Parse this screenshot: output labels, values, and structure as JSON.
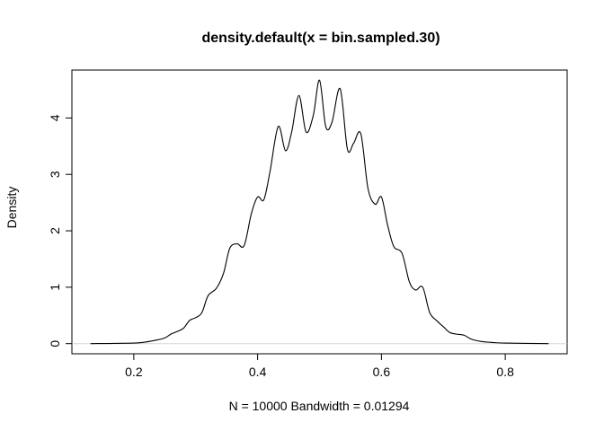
{
  "chart_data": {
    "type": "line",
    "title": "density.default(x = bin.sampled.30)",
    "xlabel": "N = 10000   Bandwidth = 0.01294",
    "ylabel": "Density",
    "xlim": [
      0.1,
      0.9
    ],
    "ylim": [
      -0.18,
      4.85
    ],
    "x_ticks": [
      0.2,
      0.4,
      0.6,
      0.8
    ],
    "x_tick_labels": [
      "0.2",
      "0.4",
      "0.6",
      "0.8"
    ],
    "y_ticks": [
      0,
      1,
      2,
      3,
      4
    ],
    "y_tick_labels": [
      "0",
      "1",
      "2",
      "3",
      "4"
    ],
    "grid": false,
    "baseline": 0,
    "series": [
      {
        "color": "#000000",
        "x": [
          0.13,
          0.2,
          0.22,
          0.235,
          0.25,
          0.26,
          0.2667,
          0.28,
          0.29,
          0.3,
          0.31,
          0.32,
          0.3333,
          0.345,
          0.355,
          0.3667,
          0.3783,
          0.39,
          0.4,
          0.41,
          0.42,
          0.4333,
          0.445,
          0.455,
          0.4667,
          0.4783,
          0.49,
          0.5,
          0.51,
          0.52,
          0.5333,
          0.545,
          0.555,
          0.5667,
          0.5783,
          0.59,
          0.6,
          0.61,
          0.62,
          0.6333,
          0.645,
          0.655,
          0.6667,
          0.678,
          0.69,
          0.7,
          0.71,
          0.72,
          0.7333,
          0.745,
          0.76,
          0.78,
          0.8,
          0.87
        ],
        "y": [
          0,
          0.01,
          0.03,
          0.06,
          0.1,
          0.17,
          0.2,
          0.27,
          0.41,
          0.46,
          0.55,
          0.85,
          0.98,
          1.25,
          1.69,
          1.77,
          1.74,
          2.31,
          2.6,
          2.55,
          3.05,
          3.85,
          3.42,
          3.75,
          4.4,
          3.75,
          4.05,
          4.67,
          3.85,
          3.92,
          4.52,
          3.45,
          3.55,
          3.72,
          2.75,
          2.47,
          2.6,
          2.1,
          1.72,
          1.6,
          1.1,
          0.95,
          1.0,
          0.55,
          0.4,
          0.3,
          0.2,
          0.17,
          0.15,
          0.08,
          0.04,
          0.02,
          0.01,
          0
        ]
      }
    ]
  }
}
